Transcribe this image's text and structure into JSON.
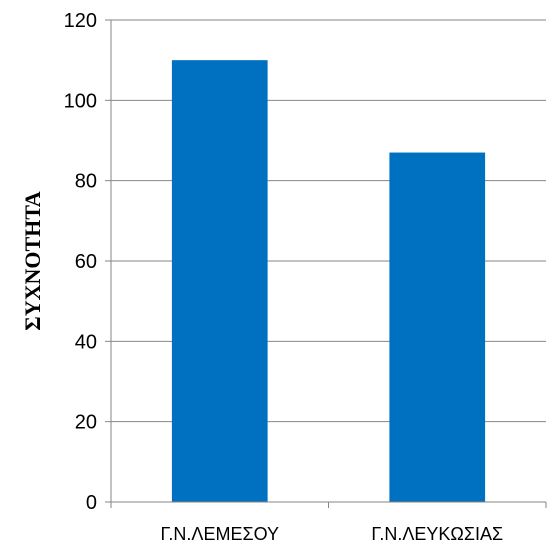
{
  "chart_data": {
    "type": "bar",
    "title": "",
    "xlabel": "",
    "ylabel": "ΣΥΧΝΟΤΗΤΑ",
    "categories": [
      "Γ.Ν.ΛΕΜΕΣΟΥ",
      "Γ.Ν.ΛΕΥΚΩΣΙΑΣ"
    ],
    "values": [
      110,
      87
    ],
    "ylim": [
      0,
      120
    ],
    "yticks": [
      0,
      20,
      40,
      60,
      80,
      100,
      120
    ],
    "grid": true,
    "legend": "none",
    "bar_color": "#0070C0",
    "grid_color": "#868686",
    "axis_color": "#868686"
  }
}
